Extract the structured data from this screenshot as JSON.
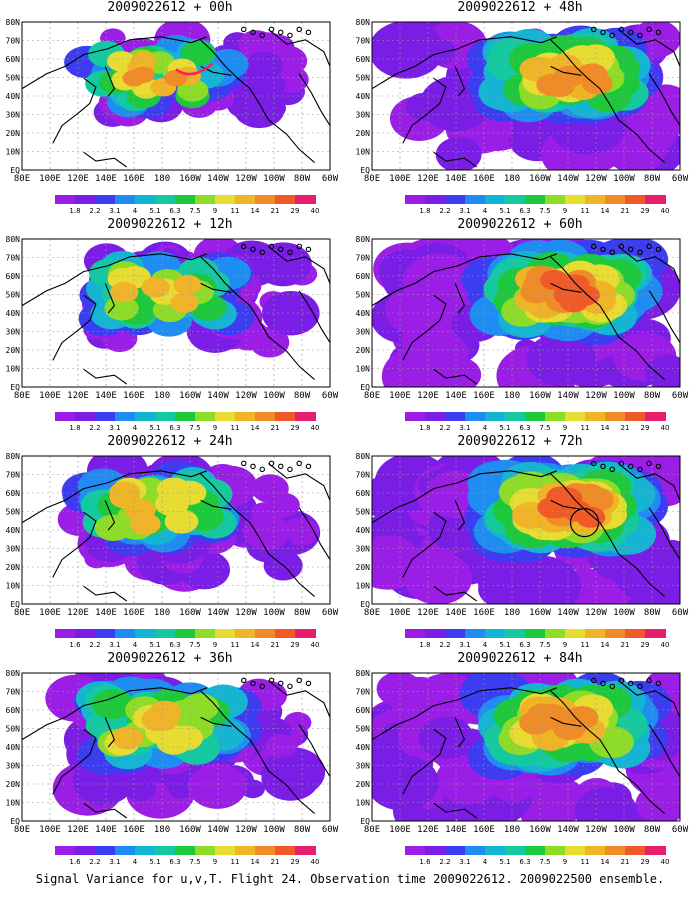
{
  "chart_data": {
    "type": "heatmap",
    "caption": "Signal Variance for u,v,T. Flight 24. Observation time 2009022612. 2009022500 ensemble.",
    "x_tick_labels": [
      "80E",
      "100E",
      "120E",
      "140E",
      "160E",
      "180",
      "160W",
      "140W",
      "120W",
      "100W",
      "80W",
      "60W"
    ],
    "y_tick_labels": [
      "EQ",
      "10N",
      "20N",
      "30N",
      "40N",
      "50N",
      "60N",
      "70N",
      "80N"
    ],
    "colorbar_levels": [
      "1.8",
      "2.2",
      "3.1",
      "4",
      "5.1",
      "6.3",
      "7.5",
      "9",
      "11",
      "14",
      "21",
      "29",
      "40"
    ],
    "colorbar_colors": [
      "#9b1ee6",
      "#7a1ee6",
      "#3c3cf0",
      "#1e8cf0",
      "#14b4d2",
      "#14c8a0",
      "#1ec83c",
      "#8cdc28",
      "#e6dc32",
      "#f0b428",
      "#f08c28",
      "#f05a28",
      "#e61e6e"
    ],
    "panels": [
      {
        "title": "2009022612 + 00h",
        "lead_hours": 0,
        "max_level": "21",
        "colorbar_labels": [
          "1.8",
          "2.2",
          "3.1",
          "4",
          "5.1",
          "6.3",
          "7.5",
          "9",
          "11",
          "14",
          "21",
          "29",
          "40"
        ]
      },
      {
        "title": "2009022612 + 12h",
        "lead_hours": 12,
        "max_level": "14",
        "colorbar_labels": [
          "1.8",
          "2.2",
          "3.1",
          "4",
          "5.1",
          "6.3",
          "7.5",
          "9",
          "11",
          "14",
          "21",
          "29",
          "40"
        ]
      },
      {
        "title": "2009022612 + 24h",
        "lead_hours": 24,
        "max_level": "14",
        "colorbar_labels": [
          "1.6",
          "2.2",
          "3.1",
          "4",
          "5.1",
          "6.3",
          "7.5",
          "9",
          "11",
          "14",
          "21",
          "29",
          "40"
        ]
      },
      {
        "title": "2009022612 + 36h",
        "lead_hours": 36,
        "max_level": "14",
        "colorbar_labels": [
          "1.6",
          "2.2",
          "3.1",
          "4",
          "5.1",
          "6.3",
          "7.5",
          "9",
          "11",
          "14",
          "21",
          "29",
          "40"
        ]
      },
      {
        "title": "2009022612 + 48h",
        "lead_hours": 48,
        "max_level": "21",
        "colorbar_labels": [
          "1.8",
          "2.2",
          "3.1",
          "4",
          "5.1",
          "6.3",
          "7.5",
          "9",
          "11",
          "14",
          "21",
          "29",
          "40"
        ]
      },
      {
        "title": "2009022612 + 60h",
        "lead_hours": 60,
        "max_level": "29",
        "colorbar_labels": [
          "1.8",
          "2.2",
          "3.1",
          "4",
          "5.1",
          "6.3",
          "7.5",
          "9",
          "11",
          "14",
          "21",
          "29",
          "40"
        ]
      },
      {
        "title": "2009022612 + 72h",
        "lead_hours": 72,
        "max_level": "29",
        "colorbar_labels": [
          "1.8",
          "2.2",
          "3.1",
          "4",
          "5.1",
          "6.3",
          "7.5",
          "9",
          "11",
          "14",
          "21",
          "29",
          "40"
        ]
      },
      {
        "title": "2009022612 + 84h",
        "lead_hours": 84,
        "max_level": "21",
        "colorbar_labels": [
          "1.6",
          "2.2",
          "3.1",
          "4",
          "5.1",
          "6.3",
          "7.5",
          "9",
          "11",
          "14",
          "21",
          "29",
          "40"
        ]
      }
    ],
    "grid": true,
    "legend": "bottom"
  }
}
